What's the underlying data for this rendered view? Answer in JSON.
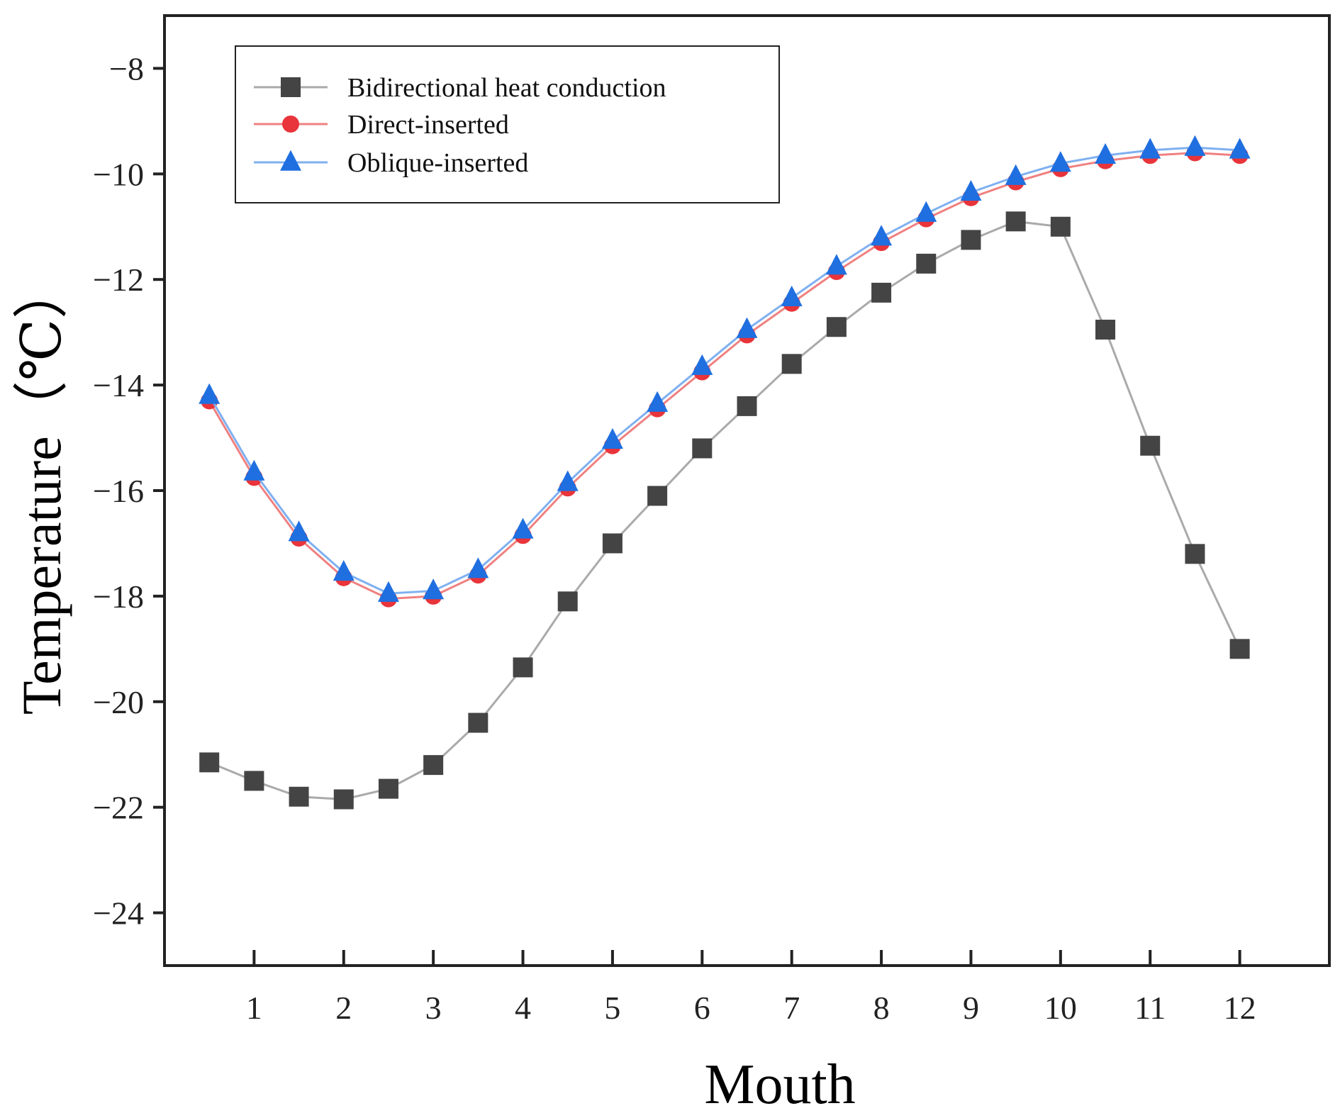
{
  "chart_data": {
    "type": "line",
    "title": "",
    "xlabel": "Mouth",
    "ylabel": "Temperature（℃）",
    "x": [
      0.5,
      1,
      1.5,
      2,
      2.5,
      3,
      3.5,
      4,
      4.5,
      5,
      5.5,
      6,
      6.5,
      7,
      7.5,
      8,
      8.5,
      9,
      9.5,
      10,
      10.5,
      11,
      11.5,
      12
    ],
    "xlim": [
      0,
      13
    ],
    "ylim": [
      -25,
      -7
    ],
    "x_ticks": [
      1,
      2,
      3,
      4,
      5,
      6,
      7,
      8,
      9,
      10,
      11,
      12
    ],
    "y_ticks": [
      -24,
      -22,
      -20,
      -18,
      -16,
      -14,
      -12,
      -10,
      -8
    ],
    "x_tick_labels": [
      "1",
      "2",
      "3",
      "4",
      "5",
      "6",
      "7",
      "8",
      "9",
      "10",
      "11",
      "12"
    ],
    "y_tick_labels": [
      "−24",
      "−22",
      "−20",
      "−18",
      "−16",
      "−14",
      "−12",
      "−10",
      "−8"
    ],
    "grid": false,
    "legend_position": "top-left",
    "series": [
      {
        "name": "Bidirectional heat conduction",
        "marker": "square",
        "color": "#444444",
        "line_color": "#aaaaaa",
        "values": [
          -21.15,
          -21.5,
          -21.8,
          -21.85,
          -21.65,
          -21.2,
          -20.4,
          -19.35,
          -18.1,
          -17.0,
          -16.1,
          -15.2,
          -14.4,
          -13.6,
          -12.9,
          -12.25,
          -11.7,
          -11.25,
          -10.9,
          -11.0,
          -12.95,
          -15.15,
          -17.2,
          -19.0
        ]
      },
      {
        "name": "Direct-inserted",
        "marker": "circle",
        "color": "#e8343a",
        "line_color": "#f08080",
        "values": [
          -14.3,
          -15.75,
          -16.9,
          -17.65,
          -18.05,
          -18.0,
          -17.6,
          -16.85,
          -15.95,
          -15.15,
          -14.45,
          -13.75,
          -13.05,
          -12.45,
          -11.85,
          -11.3,
          -10.85,
          -10.45,
          -10.15,
          -9.9,
          -9.75,
          -9.65,
          -9.6,
          -9.65
        ]
      },
      {
        "name": "Oblique-inserted",
        "marker": "triangle",
        "color": "#1f6fe0",
        "line_color": "#7fb0f0",
        "values": [
          -14.2,
          -15.65,
          -16.8,
          -17.55,
          -17.95,
          -17.9,
          -17.5,
          -16.75,
          -15.85,
          -15.05,
          -14.35,
          -13.65,
          -12.95,
          -12.35,
          -11.75,
          -11.2,
          -10.75,
          -10.35,
          -10.05,
          -9.8,
          -9.65,
          -9.55,
          -9.5,
          -9.55
        ]
      }
    ]
  }
}
